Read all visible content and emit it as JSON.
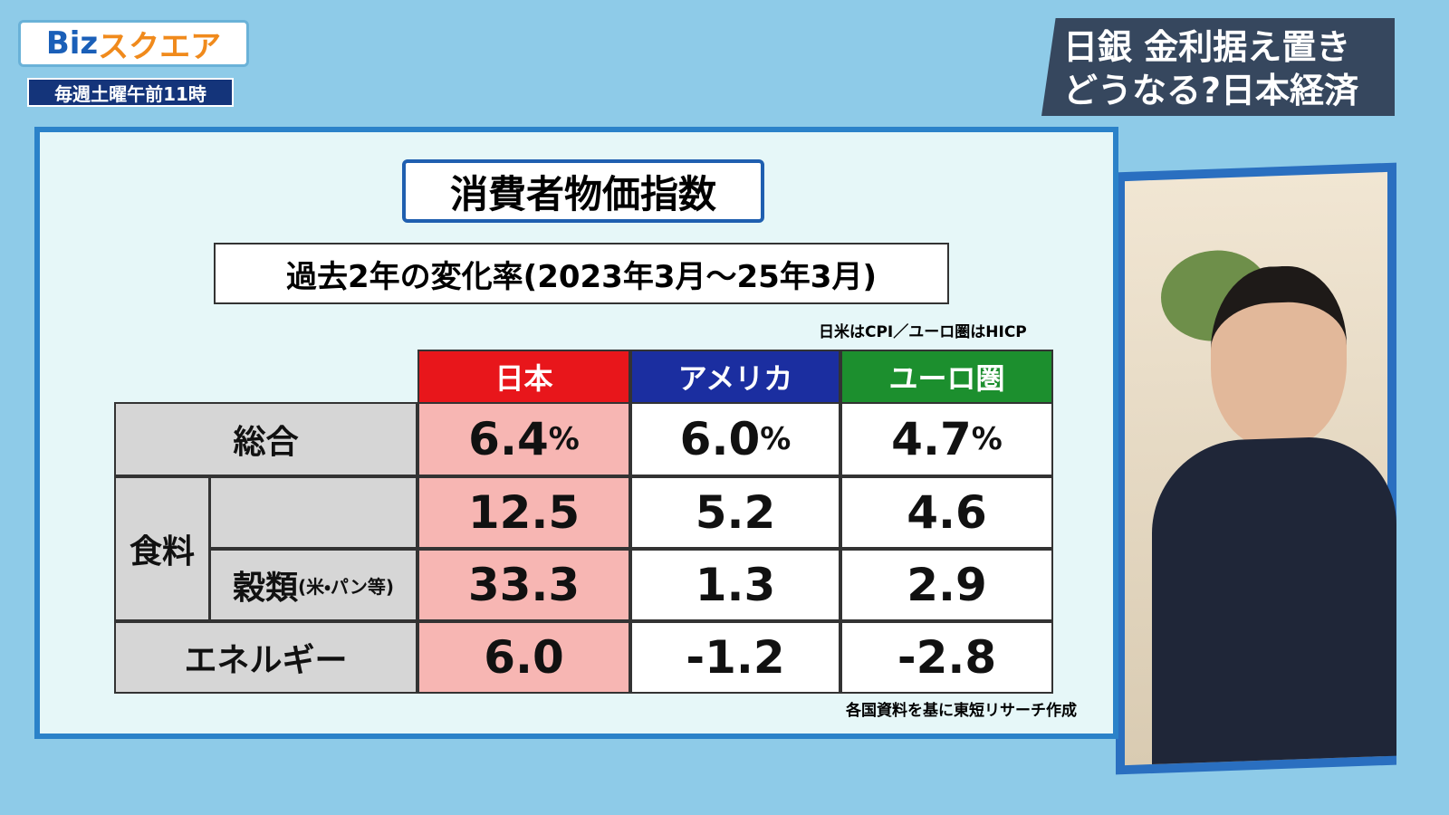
{
  "logo": {
    "text1": "Biz",
    "text2": "スクエア",
    "schedule": "毎週土曜午前11時"
  },
  "headline": {
    "line1": "日銀 金利据え置き",
    "line2": "どうなる?日本経済"
  },
  "panel": {
    "title": "消費者物価指数",
    "subtitle": "過去2年の変化率(2023年3月～25年3月)",
    "note": "日米はCPI／ユーロ圏はHICP",
    "source": "各国資料を基に東短リサーチ作成"
  },
  "table": {
    "columns": [
      "日本",
      "アメリカ",
      "ユーロ圏"
    ],
    "rows": [
      {
        "label": "総合",
        "cells": [
          {
            "value": "6.4",
            "unit": "%"
          },
          {
            "value": "6.0",
            "unit": "%"
          },
          {
            "value": "4.7",
            "unit": "%"
          }
        ]
      },
      {
        "group": "食料",
        "cells": [
          {
            "value": "12.5"
          },
          {
            "value": "5.2"
          },
          {
            "value": "4.6"
          }
        ]
      },
      {
        "label": "穀類",
        "sublabel": "(米・パン等)",
        "cells": [
          {
            "value": "33.3"
          },
          {
            "value": "1.3"
          },
          {
            "value": "2.9"
          }
        ]
      },
      {
        "label": "エネルギー",
        "cells": [
          {
            "value": "6.0"
          },
          {
            "value": "-1.2"
          },
          {
            "value": "-2.8"
          }
        ]
      }
    ]
  }
}
